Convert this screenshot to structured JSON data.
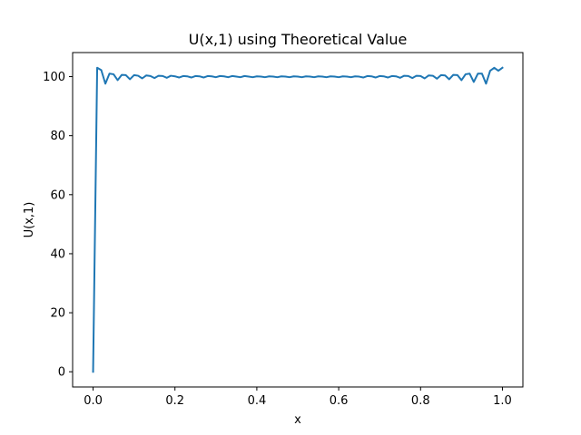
{
  "chart_data": {
    "type": "line",
    "title": "U(x,1) using Theoretical Value",
    "xlabel": "x",
    "ylabel": "U(x,1)",
    "xlim": [
      -0.05,
      1.05
    ],
    "ylim": [
      -5.15,
      108.15
    ],
    "xticks": [
      0.0,
      0.2,
      0.4,
      0.6,
      0.8,
      1.0
    ],
    "xtick_labels": [
      "0.0",
      "0.2",
      "0.4",
      "0.6",
      "0.8",
      "1.0"
    ],
    "yticks": [
      0,
      20,
      40,
      60,
      80,
      100
    ],
    "ytick_labels": [
      "0",
      "20",
      "40",
      "60",
      "80",
      "100"
    ],
    "grid": false,
    "series": [
      {
        "color": "#1f77b4",
        "x": [
          0.0,
          0.01,
          0.02,
          0.03,
          0.04,
          0.05,
          0.06,
          0.07,
          0.08,
          0.09,
          0.1,
          0.11,
          0.12,
          0.13,
          0.14,
          0.15,
          0.16,
          0.17,
          0.18,
          0.19,
          0.2,
          0.21,
          0.22,
          0.23,
          0.24,
          0.25,
          0.26,
          0.27,
          0.28,
          0.29,
          0.3,
          0.31,
          0.32,
          0.33,
          0.34,
          0.35,
          0.36,
          0.37,
          0.38,
          0.39,
          0.4,
          0.41,
          0.42,
          0.43,
          0.44,
          0.45,
          0.46,
          0.47,
          0.48,
          0.49,
          0.5,
          0.51,
          0.52,
          0.53,
          0.54,
          0.55,
          0.56,
          0.57,
          0.58,
          0.59,
          0.6,
          0.61,
          0.62,
          0.63,
          0.64,
          0.65,
          0.66,
          0.67,
          0.68,
          0.69,
          0.7,
          0.71,
          0.72,
          0.73,
          0.74,
          0.75,
          0.76,
          0.77,
          0.78,
          0.79,
          0.8,
          0.81,
          0.82,
          0.83,
          0.84,
          0.85,
          0.86,
          0.87,
          0.88,
          0.89,
          0.9,
          0.91,
          0.92,
          0.93,
          0.94,
          0.95,
          0.96,
          0.97,
          0.98,
          0.99,
          1.0
        ],
        "y": [
          0,
          103.0,
          102.2,
          97.6,
          101.0,
          100.8,
          98.8,
          100.6,
          100.5,
          99.1,
          100.5,
          100.3,
          99.4,
          100.4,
          100.2,
          99.5,
          100.3,
          100.2,
          99.6,
          100.3,
          100.1,
          99.7,
          100.2,
          100.1,
          99.7,
          100.2,
          100.1,
          99.7,
          100.2,
          100.1,
          99.8,
          100.2,
          100.1,
          99.8,
          100.2,
          100.0,
          99.8,
          100.2,
          100.0,
          99.8,
          100.1,
          100.0,
          99.8,
          100.1,
          100.0,
          99.8,
          100.1,
          100.0,
          99.8,
          100.1,
          100.0,
          99.8,
          100.1,
          100.0,
          99.8,
          100.1,
          100.0,
          99.8,
          100.1,
          100.0,
          99.8,
          100.1,
          100.0,
          99.8,
          100.1,
          100.0,
          99.7,
          100.2,
          100.1,
          99.7,
          100.2,
          100.1,
          99.7,
          100.2,
          100.1,
          99.6,
          100.3,
          100.2,
          99.5,
          100.3,
          100.2,
          99.4,
          100.4,
          100.3,
          99.3,
          100.5,
          100.4,
          99.1,
          100.6,
          100.5,
          98.8,
          100.8,
          101.0,
          98.2,
          101.0,
          101.0,
          97.6,
          102.0,
          103.0,
          102.0,
          103.0
        ]
      }
    ]
  }
}
